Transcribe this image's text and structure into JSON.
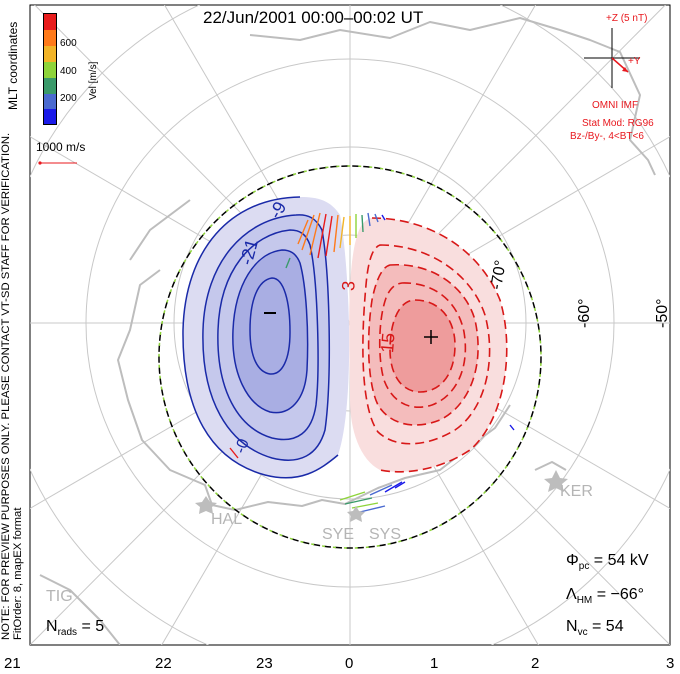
{
  "title": "22/Jun/2001 00:00–00:02 UT",
  "imf": {
    "z_label": "+Z (5 nT)",
    "y_label": "+Y",
    "source": "OMNI IMF"
  },
  "model": {
    "line1": "Stat Mod: RG96",
    "line2": "Bz-/By-, 4<BT<6"
  },
  "colorbar": {
    "unit": "Vel [m/s]",
    "ticks": [
      "600",
      "400",
      "200"
    ],
    "colors": [
      "#e81c1c",
      "#ff7a1a",
      "#f2b428",
      "#8ed43a",
      "#3a9a6a",
      "#4a6ad0",
      "#1a1ae8"
    ]
  },
  "coord_label": "MLT coordinates",
  "vector_scale": "1000 m/s",
  "side_note_1": "NOTE: FOR PREVIEW PURPOSES ONLY. PLEASE CONTACT VT-SD STAFF FOR VERIFICATION.",
  "side_note_2": "FitOrder: 8, mapEX format",
  "mlt_ticks": [
    "21",
    "22",
    "23",
    "0",
    "1",
    "2",
    "3"
  ],
  "lat_labels": [
    "-50°",
    "-60°",
    "-70°"
  ],
  "contour_labels": [
    "-21",
    "-9",
    "3",
    "15",
    "-0"
  ],
  "stations": [
    "KER",
    "HAL",
    "SYE",
    "SYS",
    "TIG"
  ],
  "stats": {
    "n_rads_label": "N",
    "n_rads_sub": "rads",
    "n_rads_value": "= 5",
    "phi_label": "Φ",
    "phi_sub": "pc",
    "phi_value": "= 54 kV",
    "lambda_label": "Λ",
    "lambda_sub": "HM",
    "lambda_value": "= −66°",
    "nvc_label": "N",
    "nvc_sub": "vc",
    "nvc_value": "= 54"
  },
  "colors": {
    "negative_cell": "#1a2aa8",
    "positive_cell": "#d81818",
    "boundary": "#000000",
    "boundary_dash": "#8ed43a",
    "coast": "#bdbdbd",
    "grid": "#c8c8c8"
  }
}
